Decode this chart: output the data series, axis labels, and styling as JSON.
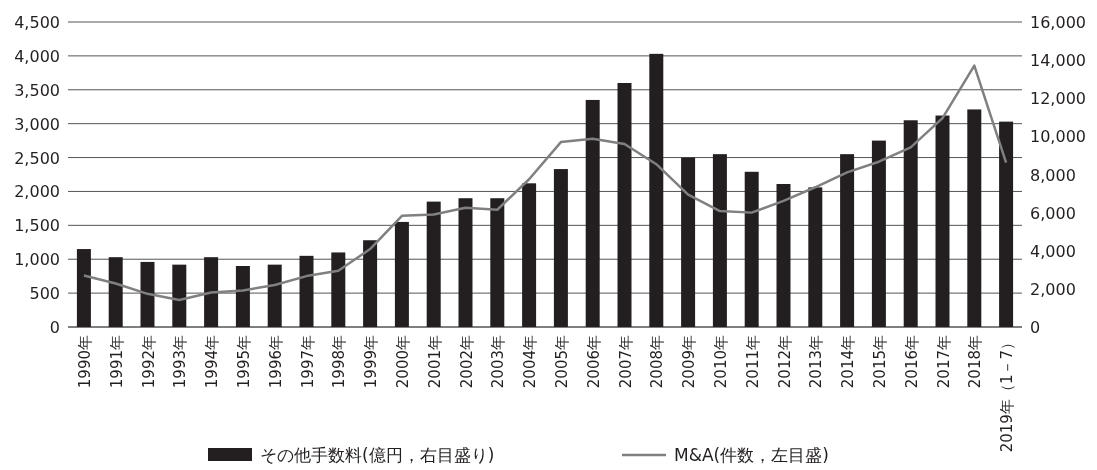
{
  "chart_data": {
    "type": "bar",
    "categories": [
      "1990年",
      "1991年",
      "1992年",
      "1993年",
      "1994年",
      "1995年",
      "1996年",
      "1997年",
      "1998年",
      "1999年",
      "2000年",
      "2001年",
      "2002年",
      "2003年",
      "2004年",
      "2005年",
      "2006年",
      "2007年",
      "2008年",
      "2009年",
      "2010年",
      "2011年",
      "2012年",
      "2013年",
      "2014年",
      "2015年",
      "2016年",
      "2017年",
      "2018年",
      "2019年（1－7）"
    ],
    "series": [
      {
        "name": "その他手数料(億円，右目盛り)",
        "color": "#231f20",
        "values": [
          1150,
          1030,
          960,
          920,
          1030,
          900,
          920,
          1050,
          1100,
          1280,
          1550,
          1850,
          1900,
          1900,
          2120,
          2330,
          3350,
          3600,
          4030,
          2500,
          2550,
          2290,
          2110,
          2060,
          2550,
          2750,
          3050,
          3120,
          3210,
          3030
        ]
      },
      {
        "name": "M&A(件数，左目盛)",
        "type": "line",
        "axis": "y2",
        "color": "#808080",
        "values": [
          2700,
          2280,
          1740,
          1420,
          1810,
          1920,
          2200,
          2670,
          2950,
          4090,
          5830,
          5900,
          6260,
          6150,
          7750,
          9700,
          9880,
          9600,
          8540,
          6940,
          6080,
          6000,
          6620,
          7330,
          8110,
          8670,
          9420,
          10960,
          13710,
          8620
        ]
      }
    ],
    "ylim": [
      0,
      4500
    ],
    "yticks": [
      0,
      500,
      {
        "value": 1000,
        "label": "1,000"
      },
      {
        "value": 1500,
        "label": "1,500"
      },
      {
        "value": 2000,
        "label": "2,000"
      },
      {
        "value": 2500,
        "label": "2,500"
      },
      {
        "value": 3000,
        "label": "3,000"
      },
      {
        "value": 3500,
        "label": "3,500"
      },
      {
        "value": 4000,
        "label": "4,000"
      },
      {
        "value": 4500,
        "label": "4,500"
      }
    ],
    "y2lim": [
      0,
      16000
    ],
    "y2ticks": [
      0,
      {
        "value": 2000,
        "label": "2,000"
      },
      {
        "value": 4000,
        "label": "4,000"
      },
      {
        "value": 6000,
        "label": "6,000"
      },
      {
        "value": 8000,
        "label": "8,000"
      },
      {
        "value": 10000,
        "label": "10,000"
      },
      {
        "value": 12000,
        "label": "12,000"
      },
      {
        "value": 14000,
        "label": "14,000"
      },
      {
        "value": 16000,
        "label": "16,000"
      }
    ],
    "grid": "y",
    "legend": "bottom"
  }
}
